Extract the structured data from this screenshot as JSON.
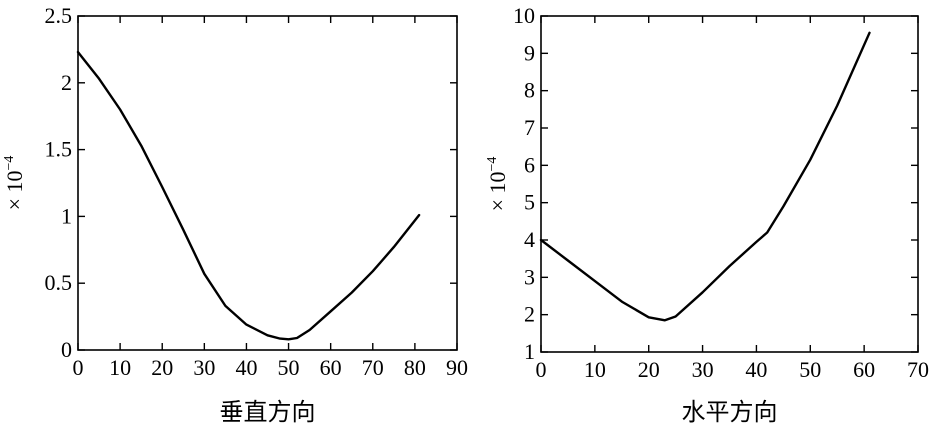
{
  "chart_data": [
    {
      "type": "line",
      "title": "",
      "xlabel": "垂直方向",
      "ylabel_prefix": "× 10",
      "ylabel_exp": "−4",
      "xlim": [
        0,
        90
      ],
      "ylim": [
        0,
        2.5
      ],
      "xticks": [
        0,
        10,
        20,
        30,
        40,
        50,
        60,
        70,
        80,
        90
      ],
      "yticks": [
        0,
        0.5,
        1,
        1.5,
        2,
        2.5
      ],
      "yticklabels": [
        "0",
        "0.5",
        "1",
        "1.5",
        "2",
        "2.5"
      ],
      "grid": false,
      "series": [
        {
          "x": [
            0,
            5,
            10,
            15,
            20,
            25,
            30,
            35,
            40,
            45,
            48,
            50,
            52,
            55,
            60,
            65,
            70,
            75,
            81
          ],
          "y": [
            2.23,
            2.03,
            1.8,
            1.53,
            1.22,
            0.9,
            0.57,
            0.33,
            0.19,
            0.11,
            0.085,
            0.08,
            0.09,
            0.15,
            0.29,
            0.43,
            0.59,
            0.77,
            1.01
          ]
        }
      ]
    },
    {
      "type": "line",
      "title": "",
      "xlabel": "水平方向",
      "ylabel_prefix": "× 10",
      "ylabel_exp": "−4",
      "xlim": [
        0,
        70
      ],
      "ylim": [
        1,
        10
      ],
      "xticks": [
        0,
        10,
        20,
        30,
        40,
        50,
        60,
        70
      ],
      "yticks": [
        1,
        2,
        3,
        4,
        5,
        6,
        7,
        8,
        9,
        10
      ],
      "yticklabels": [
        "1",
        "2",
        "3",
        "4",
        "5",
        "6",
        "7",
        "8",
        "9",
        "10"
      ],
      "grid": false,
      "series": [
        {
          "x": [
            0,
            5,
            10,
            15,
            20,
            23,
            25,
            30,
            35,
            40,
            42,
            45,
            50,
            55,
            61
          ],
          "y": [
            4.0,
            3.45,
            2.9,
            2.35,
            1.93,
            1.85,
            1.95,
            2.6,
            3.3,
            3.95,
            4.2,
            4.9,
            6.15,
            7.6,
            9.55
          ]
        }
      ]
    }
  ]
}
